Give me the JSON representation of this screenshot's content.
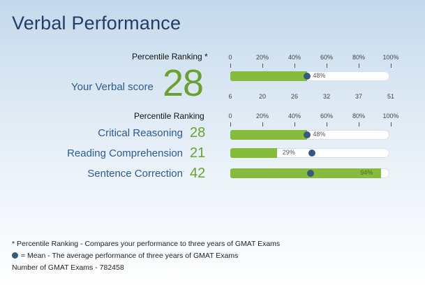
{
  "title": "Verbal Performance",
  "headers": {
    "top": "Percentile Ranking *",
    "sub": "Percentile Ranking"
  },
  "ticks": [
    "0",
    "20%",
    "40%",
    "60%",
    "80%",
    "100%"
  ],
  "score_axis": [
    "6",
    "20",
    "26",
    "32",
    "37",
    "51"
  ],
  "verbal": {
    "label": "Your Verbal score",
    "score": "28",
    "percentile": 48,
    "percentile_label": "48%",
    "mean": 48
  },
  "rows": [
    {
      "label": "Critical Reasoning",
      "value": "28",
      "percentile": 48,
      "percentile_label": "48%",
      "mean": 48,
      "label_inside": false
    },
    {
      "label": "Reading Comprehension",
      "value": "21",
      "percentile": 29,
      "percentile_label": "29%",
      "mean": 51,
      "label_inside": false
    },
    {
      "label": "Sentence Correction",
      "value": "42",
      "percentile": 94,
      "percentile_label": "94%",
      "mean": 50,
      "label_inside": true
    }
  ],
  "footer": {
    "note": "* Percentile Ranking - Compares your performance to three years of GMAT Exams",
    "mean_note": "= Mean - The average performance of three years of GMAT Exams",
    "count": "Number of GMAT Exams - 782458"
  },
  "colors": {
    "title": "#1f3f66",
    "label": "#2c5b8c",
    "accent": "#6aa132",
    "fill": "#86bb3e",
    "mean": "#37587f"
  }
}
